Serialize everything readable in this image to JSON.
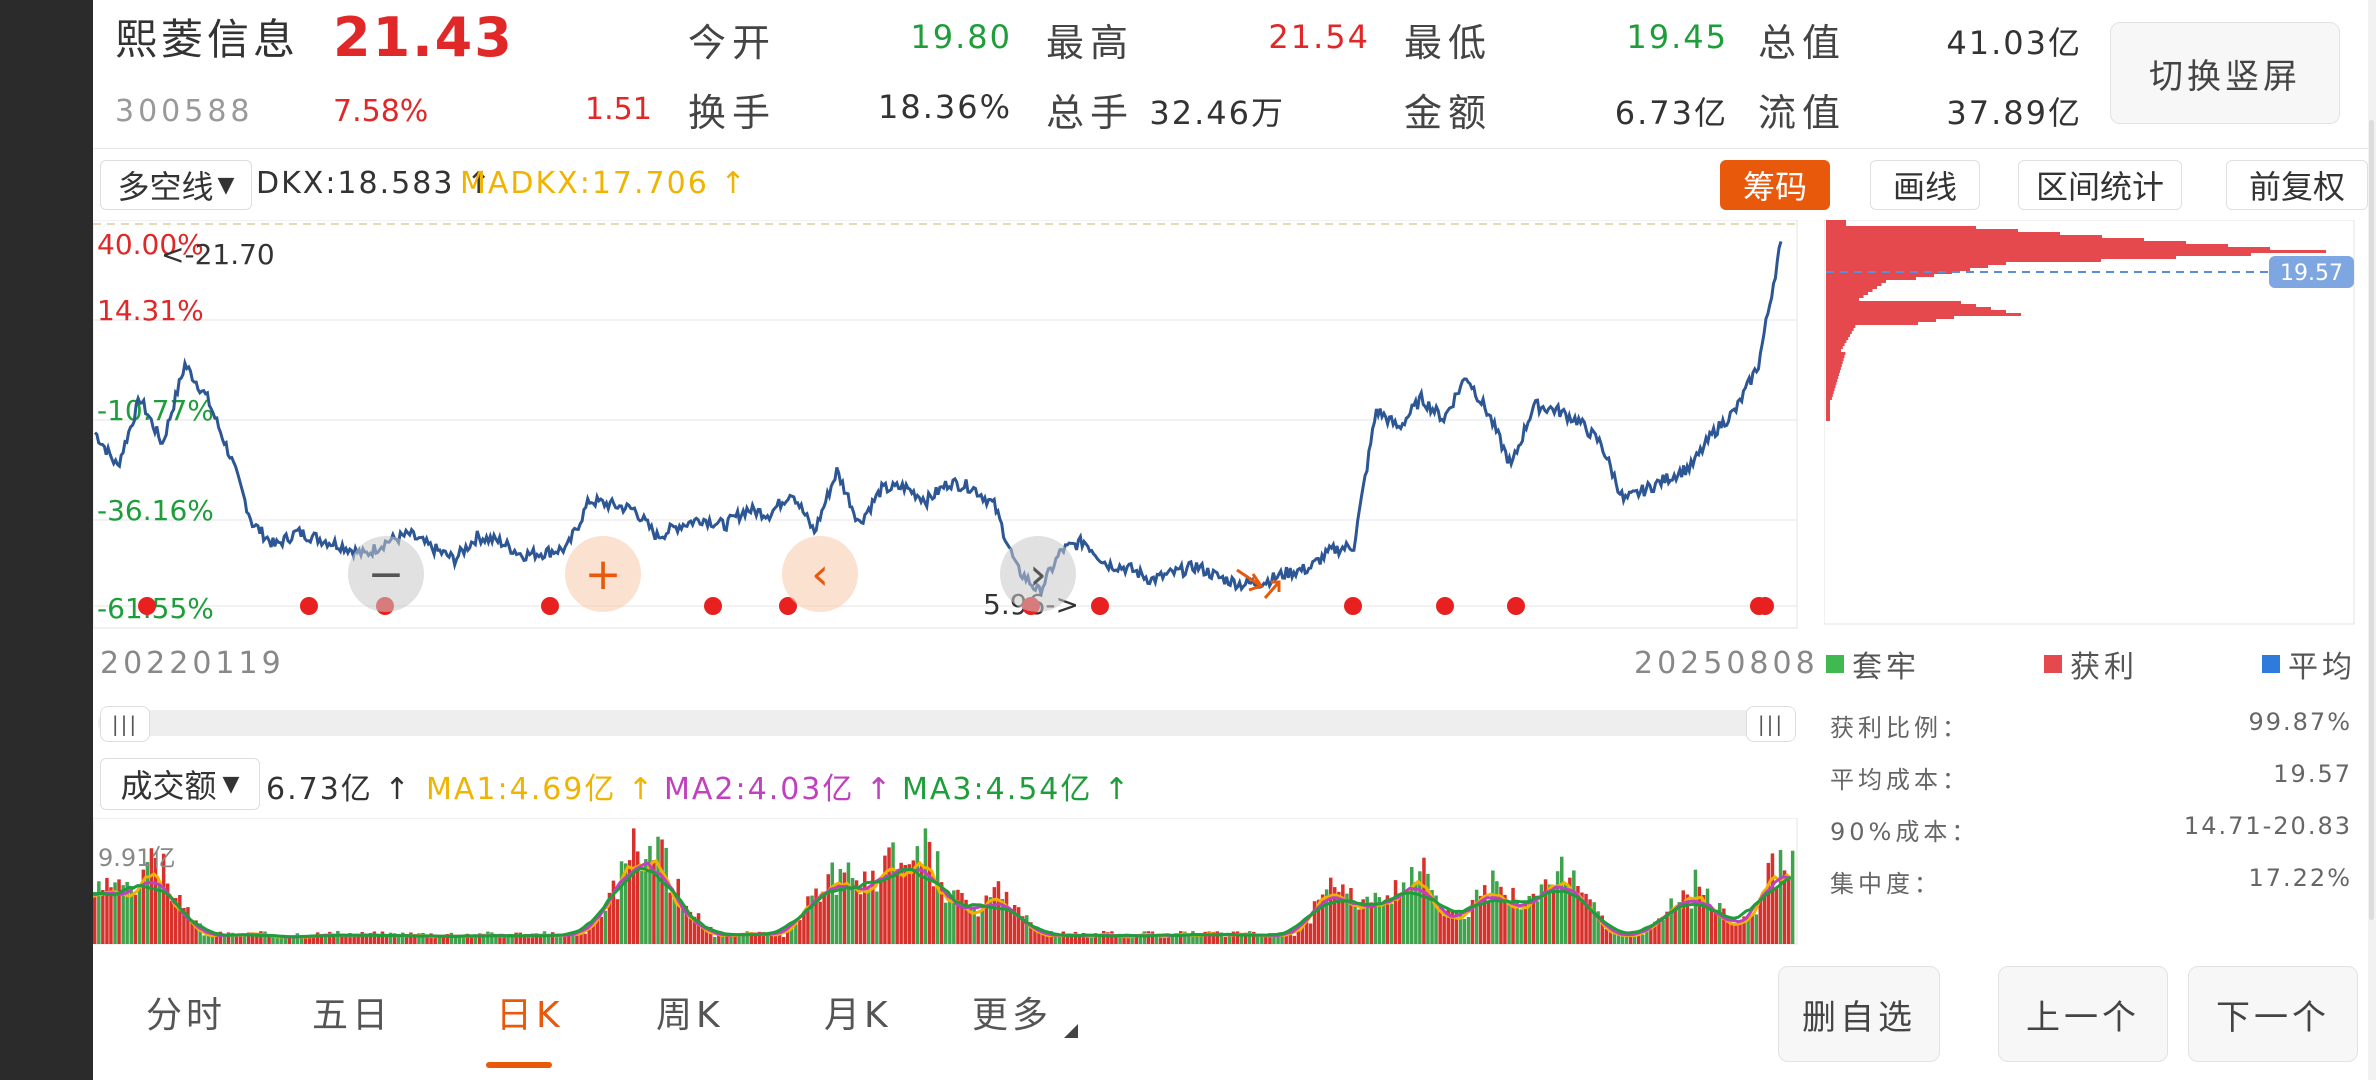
{
  "header": {
    "stock_name": "熙菱信息",
    "price": "21.43",
    "code": "300588",
    "change_pct": "7.58%",
    "change": "1.51",
    "quotes": [
      {
        "label": "今开",
        "value": "19.80",
        "color": "green"
      },
      {
        "label": "最高",
        "value": "21.54",
        "color": "red"
      },
      {
        "label": "最低",
        "value": "19.45",
        "color": "green"
      },
      {
        "label": "总值",
        "value": "41.03亿",
        "color": "dark"
      },
      {
        "label": "换手",
        "value": "18.36%",
        "color": "dark"
      },
      {
        "label": "总手",
        "value": "32.46万",
        "color": "dark"
      },
      {
        "label": "金额",
        "value": "6.73亿",
        "color": "dark"
      },
      {
        "label": "流值",
        "value": "37.89亿",
        "color": "dark"
      }
    ],
    "switch_button": "切换竖屏"
  },
  "indicator": {
    "select": "多空线",
    "dkx": "DKX:18.583 ↑",
    "madkx": "MADKX:17.706 ↑"
  },
  "toolbar": {
    "chips": "筹码",
    "draw": "画线",
    "range_stats": "区间统计",
    "adjust": "前复权"
  },
  "chart": {
    "pct_labels": [
      "40.00%",
      "14.31%",
      "-10.77%",
      "-36.16%",
      "-61.55%"
    ],
    "high_marker": "<-21.70",
    "low_marker": "5.96->",
    "start_date": "20220119",
    "end_date": "20250808",
    "chip_price": "19.57"
  },
  "chart_data": {
    "type": "line",
    "x_range": [
      "20220119",
      "20250808"
    ],
    "y_range_pct": [
      -61.55,
      40.0
    ],
    "max_price": 21.7,
    "min_price": 5.96,
    "series": [
      {
        "values": [
          13.0,
          11.5,
          14.5,
          12.5,
          16.0,
          14.5,
          12.0,
          9.0,
          8.0,
          8.6,
          8.3,
          8.0,
          7.6,
          8.2,
          8.5,
          7.9,
          7.4,
          8.4,
          8.2,
          7.6,
          7.7,
          7.9,
          10.0,
          9.8,
          9.6,
          8.4,
          8.9,
          9.2,
          8.9,
          9.6,
          9.4,
          10.4,
          8.6,
          11.3,
          9.0,
          10.5,
          10.6,
          10.0,
          10.8,
          10.6,
          9.8,
          7.0,
          5.96,
          7.8,
          8.2,
          7.2,
          7.0,
          6.5,
          6.8,
          7.1,
          6.6,
          6.3,
          6.4,
          6.8,
          7.0,
          7.8,
          8.0,
          14.0,
          13.2,
          14.5,
          13.6,
          15.5,
          13.8,
          11.5,
          14.2,
          14.0,
          13.5,
          12.5,
          10.0,
          10.5,
          11.0,
          11.5,
          13.0,
          14.0,
          16.0,
          21.43
        ]
      }
    ],
    "buy_signal_dates_count": 14
  },
  "volume": {
    "select": "成交额",
    "value": "6.73亿 ↑",
    "ma1": "MA1:4.69亿 ↑",
    "ma2": "MA2:4.03亿 ↑",
    "ma3": "MA3:4.54亿 ↑",
    "max_label": "9.91亿"
  },
  "chips_panel": {
    "legend": [
      {
        "label": "套牢",
        "color": "#3fb950"
      },
      {
        "label": "获利",
        "color": "#e5484d"
      },
      {
        "label": "平均",
        "color": "#2f7bdc"
      }
    ],
    "stats": [
      {
        "label": "获利比例：",
        "value": "99.87%"
      },
      {
        "label": "平均成本：",
        "value": "19.57"
      },
      {
        "label": "90%成本：",
        "value": "14.71-20.83"
      },
      {
        "label": "集中度：",
        "value": "17.22%"
      }
    ]
  },
  "bottom": {
    "tabs": [
      "分时",
      "五日",
      "日K",
      "周K",
      "月K",
      "更多"
    ],
    "buttons": [
      "删自选",
      "上一个",
      "下一个"
    ]
  },
  "overlay_controls": [
    "zoom-out",
    "zoom-in",
    "prev",
    "next"
  ]
}
